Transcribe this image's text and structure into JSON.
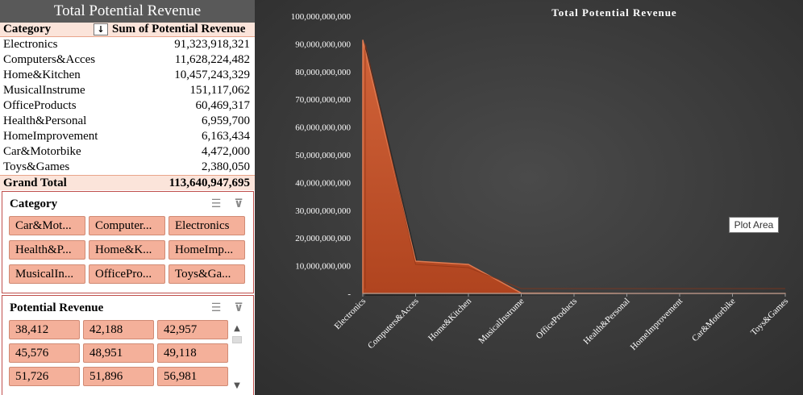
{
  "pivot": {
    "title": "Total Potential Revenue",
    "col_category": "Category",
    "col_sum": "Sum of Potential Revenue",
    "rows": [
      {
        "category": "Electronics",
        "value": "91,323,918,321"
      },
      {
        "category": "Computers&Acces",
        "value": "11,628,224,482"
      },
      {
        "category": "Home&Kitchen",
        "value": "10,457,243,329"
      },
      {
        "category": "MusicalInstrume",
        "value": "151,117,062"
      },
      {
        "category": "OfficeProducts",
        "value": "60,469,317"
      },
      {
        "category": "Health&Personal",
        "value": "6,959,700"
      },
      {
        "category": "HomeImprovement",
        "value": "6,163,434"
      },
      {
        "category": "Car&Motorbike",
        "value": "4,472,000"
      },
      {
        "category": "Toys&Games",
        "value": "2,380,050"
      }
    ],
    "total_label": "Grand Total",
    "total_value": "113,640,947,695"
  },
  "slicer_category": {
    "title": "Category",
    "items": [
      "Car&Mot...",
      "Computer...",
      "Electronics",
      "Health&P...",
      "Home&K...",
      "HomeImp...",
      "MusicalIn...",
      "OfficePro...",
      "Toys&Ga..."
    ]
  },
  "slicer_revenue": {
    "title": "Potential Revenue",
    "items": [
      "38,412",
      "42,188",
      "42,957",
      "45,576",
      "48,951",
      "49,118",
      "51,726",
      "51,896",
      "56,981"
    ]
  },
  "tooltip": "Plot Area",
  "colors": {
    "area_fill": "#c0502a",
    "area_edge": "#e07a50",
    "chart_bg": "#404040"
  },
  "chart_data": {
    "type": "area",
    "title": "Total Potential Revenue",
    "categories": [
      "Electronics",
      "Computers&Acces",
      "Home&Kitchen",
      "MusicalInstrume",
      "OfficeProducts",
      "Health&Personal",
      "HomeImprovement",
      "Car&Motorbike",
      "Toys&Games"
    ],
    "values": [
      91323918321,
      11628224482,
      10457243329,
      151117062,
      60469317,
      6959700,
      6163434,
      4472000,
      2380050
    ],
    "ylim": [
      0,
      100000000000
    ],
    "yticks": [
      "-",
      "10,000,000,000",
      "20,000,000,000",
      "30,000,000,000",
      "40,000,000,000",
      "50,000,000,000",
      "60,000,000,000",
      "70,000,000,000",
      "80,000,000,000",
      "90,000,000,000",
      "100,000,000,000"
    ],
    "ytick_values": [
      0,
      10000000000,
      20000000000,
      30000000000,
      40000000000,
      50000000000,
      60000000000,
      70000000000,
      80000000000,
      90000000000,
      100000000000
    ],
    "grid": false,
    "legend": "none"
  }
}
